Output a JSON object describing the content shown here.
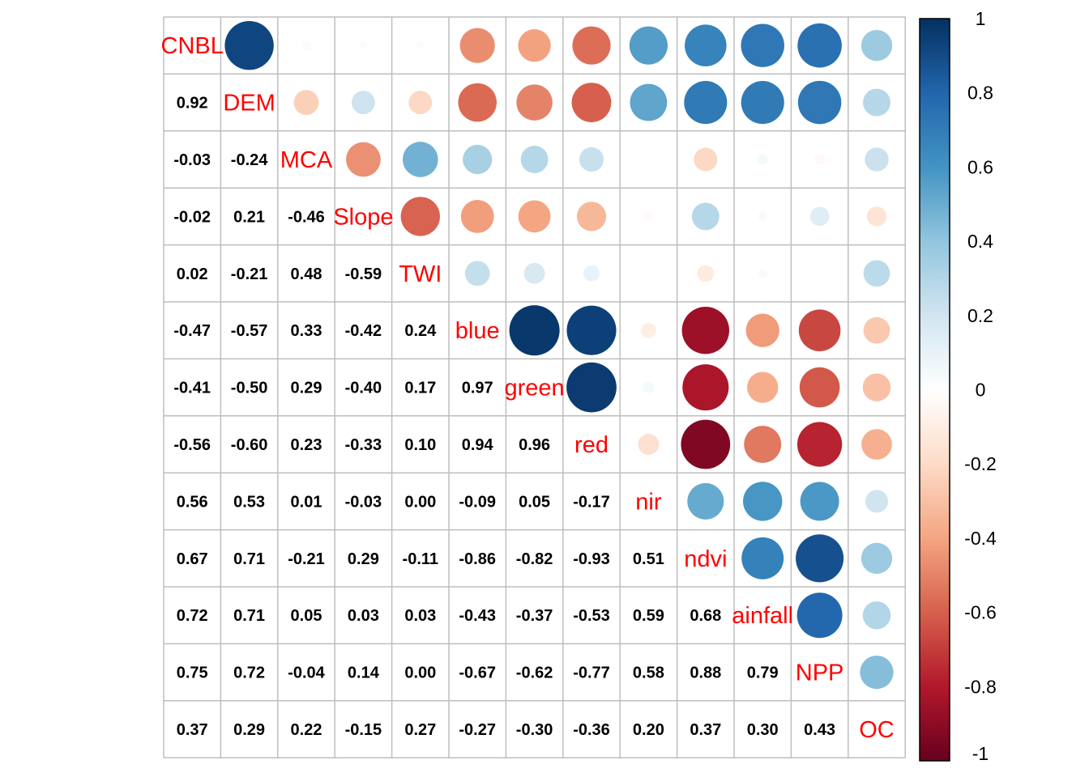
{
  "chart_data": {
    "type": "heatmap",
    "title": "",
    "variables": [
      "CNBL",
      "DEM",
      "MCA",
      "Slope",
      "TWI",
      "blue",
      "green",
      "red",
      "nir",
      "ndvi",
      "rainfall",
      "NPP",
      "OC"
    ],
    "variable_labels": [
      "CNBL",
      "DEM",
      "MCA",
      "Slope",
      "TWI",
      "blue",
      "green",
      "red",
      "nir",
      "ndvi",
      "ainfall",
      "NPP",
      "OC"
    ],
    "lower_labels": [
      [],
      [
        "0.92"
      ],
      [
        "-0.03",
        "-0.24"
      ],
      [
        "-0.02",
        "0.21",
        "-0.46"
      ],
      [
        "0.02",
        "-0.21",
        "0.48",
        "-0.59"
      ],
      [
        "-0.47",
        "-0.57",
        "0.33",
        "-0.42",
        "0.24"
      ],
      [
        "-0.41",
        "-0.50",
        "0.29",
        "-0.40",
        "0.17",
        "0.97"
      ],
      [
        "-0.56",
        "-0.60",
        "0.23",
        "-0.33",
        "0.10",
        "0.94",
        "0.96"
      ],
      [
        "0.56",
        "0.53",
        "0.01",
        "-0.03",
        "0.00",
        "-0.09",
        "0.05",
        "-0.17"
      ],
      [
        "0.67",
        "0.71",
        "-0.21",
        "0.29",
        "-0.11",
        "-0.86",
        "-0.82",
        "-0.93",
        "0.51"
      ],
      [
        "0.72",
        "0.71",
        "0.05",
        "0.03",
        "0.03",
        "-0.43",
        "-0.37",
        "-0.53",
        "0.59",
        "0.68"
      ],
      [
        "0.75",
        "0.72",
        "-0.04",
        "0.14",
        "0.00",
        "-0.67",
        "-0.62",
        "-0.77",
        "0.58",
        "0.88",
        "0.79"
      ],
      [
        "0.37",
        "0.29",
        "0.22",
        "-0.15",
        "0.27",
        "-0.27",
        "-0.30",
        "-0.36",
        "0.20",
        "0.37",
        "0.30",
        "0.43"
      ]
    ],
    "colorbar": {
      "range": [
        -1,
        1
      ],
      "ticks": [
        "1",
        "0.8",
        "0.6",
        "0.4",
        "0.2",
        "0",
        "-0.2",
        "-0.4",
        "-0.6",
        "-0.8",
        "-1"
      ],
      "colors": [
        "#67001F",
        "#B2182B",
        "#D6604D",
        "#F4A582",
        "#FDDBC7",
        "#FFFFFF",
        "#D1E5F0",
        "#92C5DE",
        "#4393C3",
        "#2166AC",
        "#053061"
      ]
    },
    "upper_glyph": "circle",
    "lower_glyph": "number",
    "diagonal": "variable name"
  }
}
